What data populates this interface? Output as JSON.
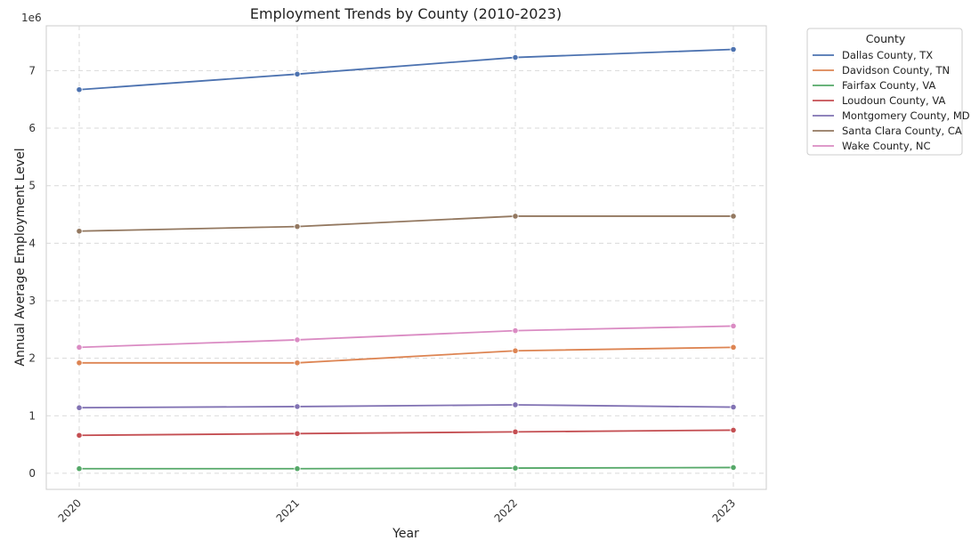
{
  "chart_data": {
    "type": "line",
    "title": "Employment Trends by County (2010-2023)",
    "xlabel": "Year",
    "ylabel": "Annual Average Employment Level",
    "scale_label": "1e6",
    "x": [
      "2020",
      "2021",
      "2022",
      "2023"
    ],
    "yticks": [
      "0",
      "1",
      "2",
      "3",
      "4",
      "5",
      "6",
      "7"
    ],
    "ylim": [
      -0.28,
      7.78
    ],
    "y_multiplier": 1000000,
    "grid": true,
    "legend": {
      "title": "County",
      "position": "outside-top-right"
    },
    "series": [
      {
        "name": "Dallas County, TX",
        "color": "#4c72b0",
        "values": [
          6670000,
          6940000,
          7230000,
          7370000
        ]
      },
      {
        "name": "Davidson County, TN",
        "color": "#dd8452",
        "values": [
          1920000,
          1920000,
          2130000,
          2190000
        ]
      },
      {
        "name": "Fairfax County, VA",
        "color": "#55a868",
        "values": [
          80000,
          80000,
          90000,
          100000
        ]
      },
      {
        "name": "Loudoun County, VA",
        "color": "#c44e52",
        "values": [
          660000,
          690000,
          720000,
          750000
        ]
      },
      {
        "name": "Montgomery County, MD",
        "color": "#8172b3",
        "values": [
          1140000,
          1160000,
          1190000,
          1150000
        ]
      },
      {
        "name": "Santa Clara County, CA",
        "color": "#937860",
        "values": [
          4210000,
          4290000,
          4470000,
          4470000
        ]
      },
      {
        "name": "Wake County, NC",
        "color": "#da8bc3",
        "values": [
          2190000,
          2320000,
          2480000,
          2560000
        ]
      }
    ]
  }
}
